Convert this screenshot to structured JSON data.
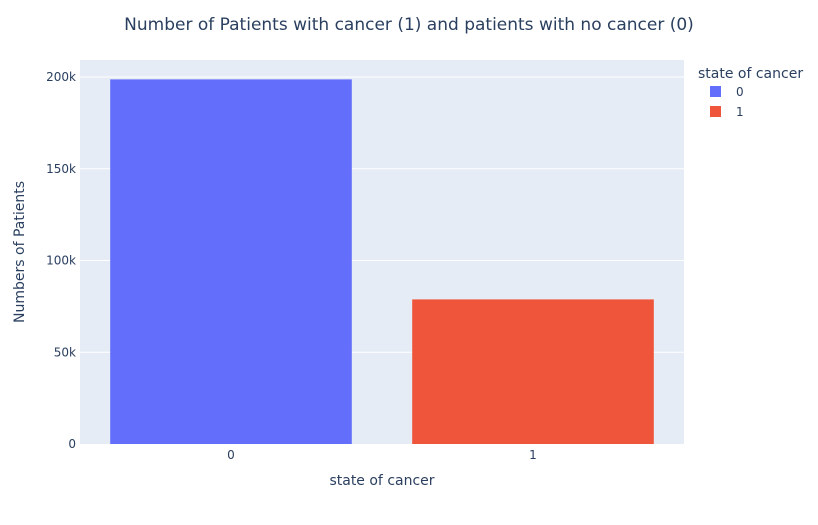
{
  "chart_data": {
    "type": "bar",
    "title": "Number of Patients with cancer (1) and patients with no cancer (0)",
    "xlabel": "state of cancer",
    "ylabel": "Numbers of Patients",
    "categories": [
      "0",
      "1"
    ],
    "values": [
      198700,
      78800
    ],
    "colors": [
      "#636efa",
      "#ef553b"
    ],
    "ylim": [
      0,
      210000
    ],
    "yticks": [
      0,
      50000,
      100000,
      150000,
      200000
    ],
    "ytick_labels": [
      "0",
      "50k",
      "100k",
      "150k",
      "200k"
    ],
    "grid": true,
    "legend": {
      "title": "state of cancer",
      "placement": "top-right",
      "entries": [
        "0",
        "1"
      ]
    }
  },
  "style": {
    "plot_background": "#e5ecf6",
    "gridline_color": "#ffffff",
    "text_color": "#2a3f5f"
  }
}
